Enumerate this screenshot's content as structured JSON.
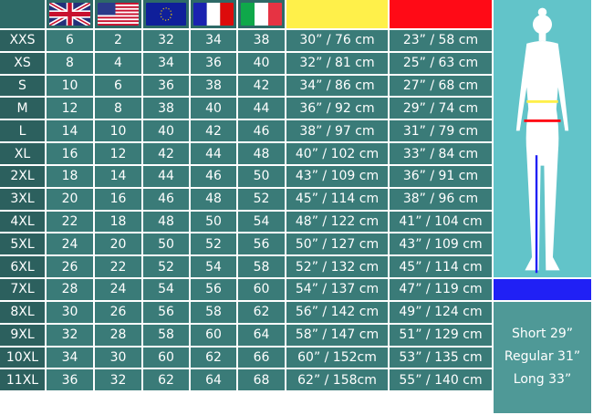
{
  "header": {
    "flags": [
      "uk-flag-icon",
      "us-flag-icon",
      "eu-flag-icon",
      "france-flag-icon",
      "italy-flag-icon"
    ],
    "measure_colors": {
      "yellow_waist": "#fff04a",
      "red_hip": "#ff0a16",
      "blue_inseam": "#2020f5"
    }
  },
  "rows": [
    [
      "XXS",
      "6",
      "2",
      "32",
      "34",
      "38",
      "30” / 76 cm",
      "23” / 58 cm"
    ],
    [
      "XS",
      "8",
      "4",
      "34",
      "36",
      "40",
      "32” / 81 cm",
      "25” / 63 cm"
    ],
    [
      "S",
      "10",
      "6",
      "36",
      "38",
      "42",
      "34” / 86 cm",
      "27” / 68 cm"
    ],
    [
      "M",
      "12",
      "8",
      "38",
      "40",
      "44",
      "36” / 92 cm",
      "29” / 74 cm"
    ],
    [
      "L",
      "14",
      "10",
      "40",
      "42",
      "46",
      "38” / 97 cm",
      "31” / 79 cm"
    ],
    [
      "XL",
      "16",
      "12",
      "42",
      "44",
      "48",
      "40” / 102 cm",
      "33” / 84 cm"
    ],
    [
      "2XL",
      "18",
      "14",
      "44",
      "46",
      "50",
      "43” / 109 cm",
      "36” / 91 cm"
    ],
    [
      "3XL",
      "20",
      "16",
      "46",
      "48",
      "52",
      "45” / 114 cm",
      "38” / 96 cm"
    ],
    [
      "4XL",
      "22",
      "18",
      "48",
      "50",
      "54",
      "48” / 122 cm",
      "41” / 104 cm"
    ],
    [
      "5XL",
      "24",
      "20",
      "50",
      "52",
      "56",
      "50” / 127 cm",
      "43” / 109 cm"
    ],
    [
      "6XL",
      "26",
      "22",
      "52",
      "54",
      "58",
      "52” / 132 cm",
      "45” / 114 cm"
    ],
    [
      "7XL",
      "28",
      "24",
      "54",
      "56",
      "60",
      "54” / 137 cm",
      "47” / 119 cm"
    ],
    [
      "8XL",
      "30",
      "26",
      "56",
      "58",
      "62",
      "56” / 142 cm",
      "49” / 124 cm"
    ],
    [
      "9XL",
      "32",
      "28",
      "58",
      "60",
      "64",
      "58” / 147 cm",
      "51” / 129 cm"
    ],
    [
      "10XL",
      "34",
      "30",
      "60",
      "62",
      "66",
      "60” / 152cm",
      "53” / 135 cm"
    ],
    [
      "11XL",
      "36",
      "32",
      "62",
      "64",
      "68",
      "62” / 158cm",
      "55” / 140 cm"
    ]
  ],
  "inseam": [
    "Short 29”",
    "Regular 31”",
    "Long 33”"
  ]
}
